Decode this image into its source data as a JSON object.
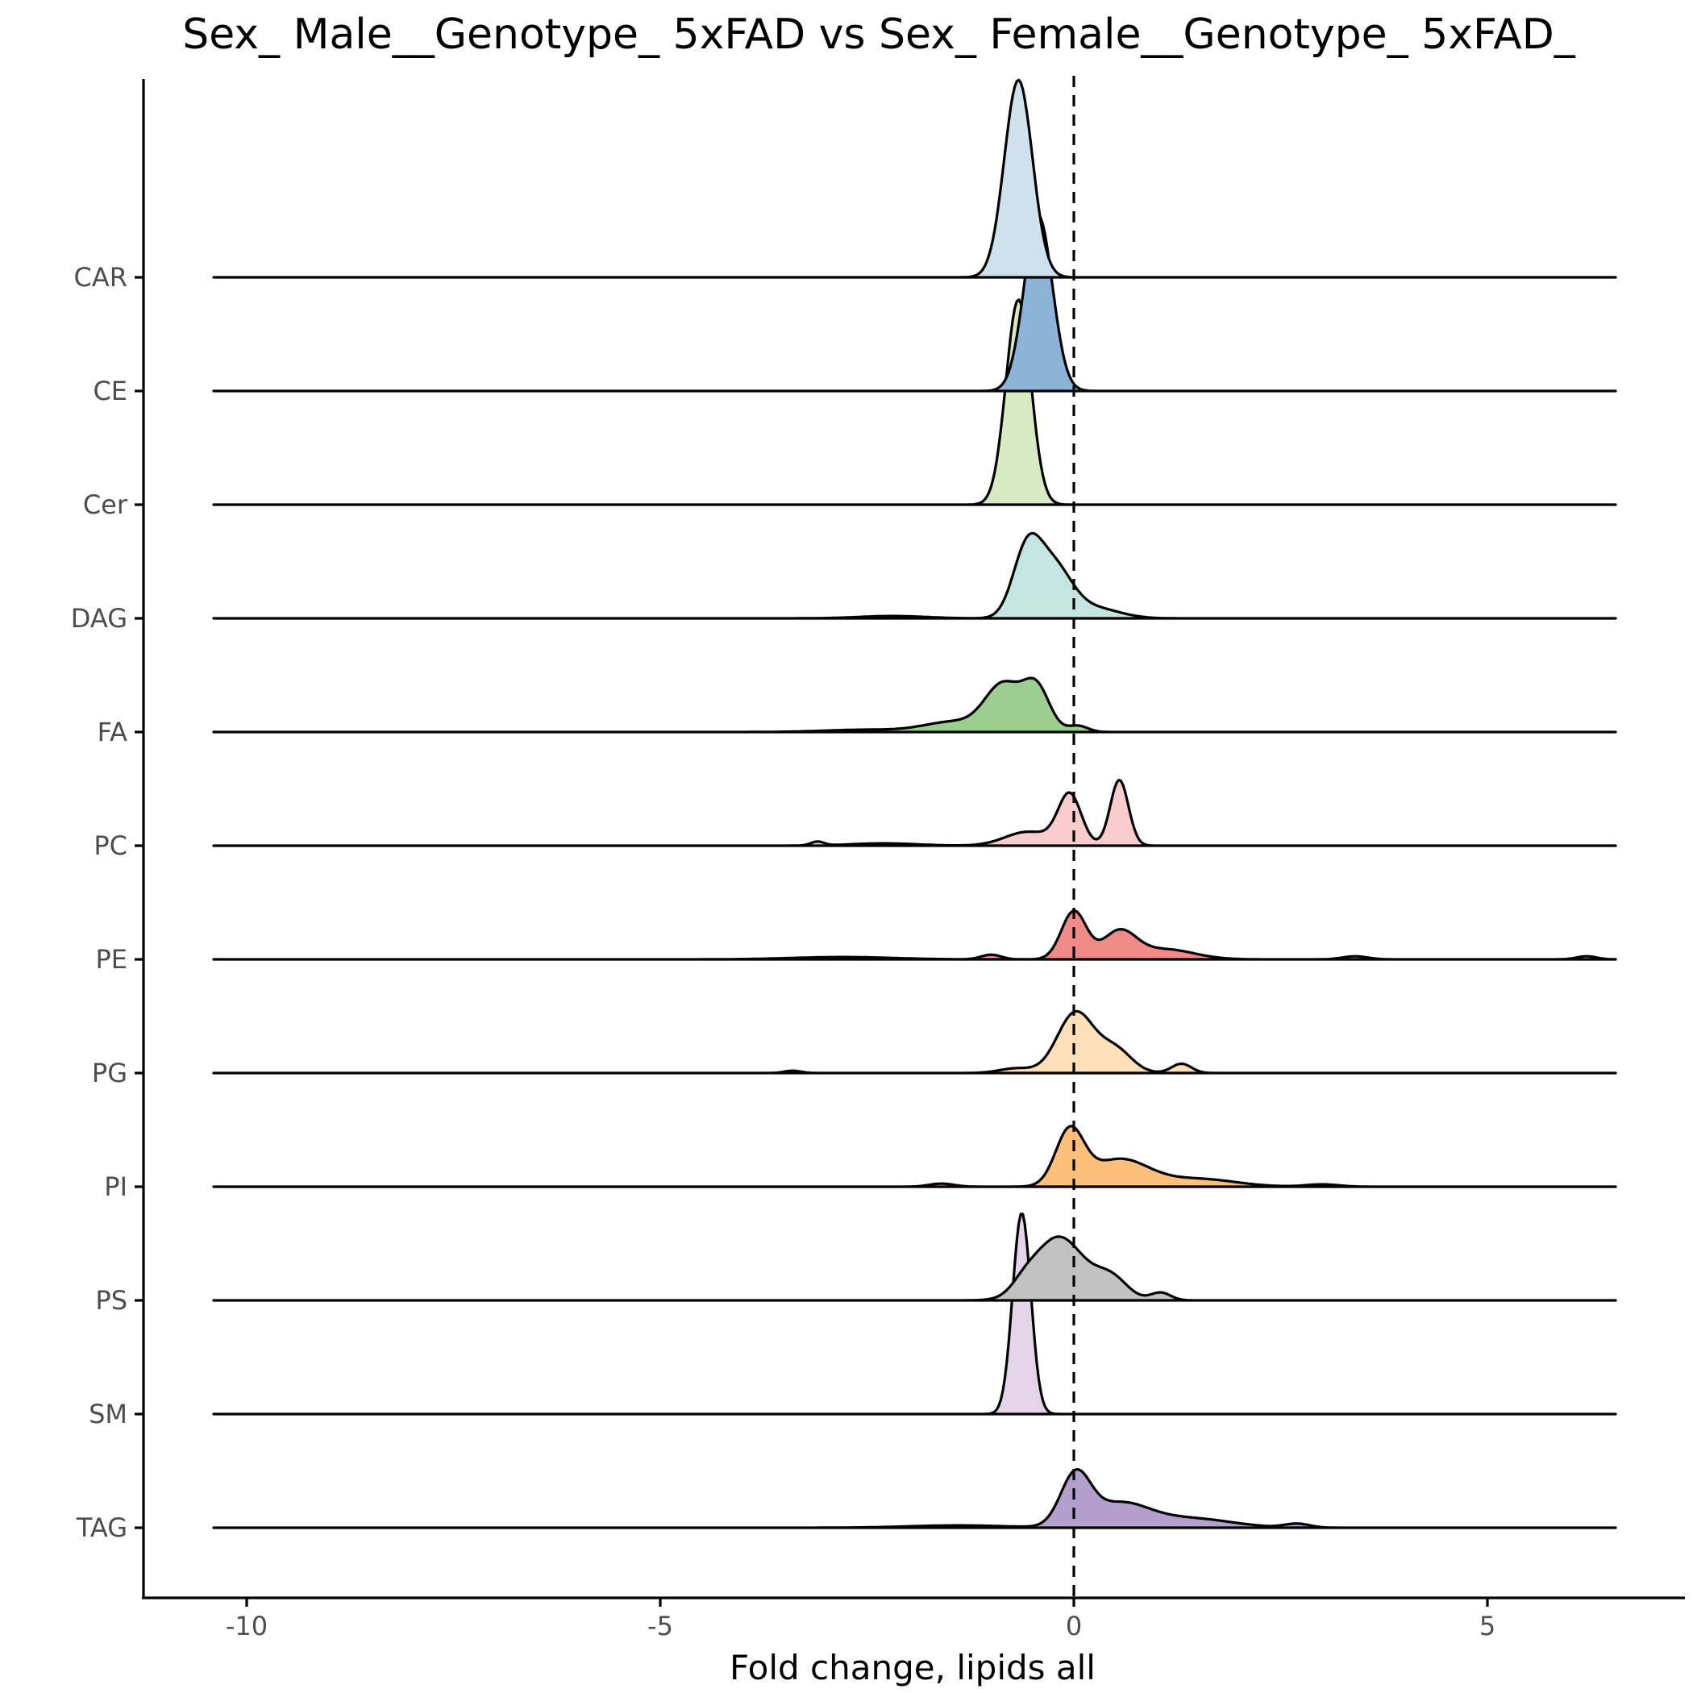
{
  "chart_data": {
    "type": "ridgeline",
    "title": "Sex_ Male__Genotype_ 5xFAD vs Sex_ Female__Genotype_ 5xFAD_",
    "xlabel": "Fold change, lipids all",
    "ylabel": "",
    "xlim": [
      -11.25,
      7.0
    ],
    "density_range": [
      -10.4,
      6.55
    ],
    "x_ticks": [
      -10,
      -5,
      0,
      5
    ],
    "x_tick_labels": [
      "-10",
      "-5",
      "0",
      "5"
    ],
    "reference_line_x": 0,
    "grid": false,
    "legend": "none",
    "categories": [
      "CAR",
      "CE",
      "Cer",
      "DAG",
      "FA",
      "PC",
      "PE",
      "PG",
      "PI",
      "PS",
      "SM",
      "TAG"
    ],
    "series": [
      {
        "name": "CAR",
        "color": "#d0e1ee",
        "peaks": [
          {
            "x": -0.67,
            "w": 0.17,
            "h": 2.55
          }
        ]
      },
      {
        "name": "CE",
        "color": "#8bb4d8",
        "peaks": [
          {
            "x": -0.43,
            "w": 0.17,
            "h": 2.27
          }
        ]
      },
      {
        "name": "Cer",
        "color": "#d7ebc3",
        "peaks": [
          {
            "x": -0.67,
            "w": 0.15,
            "h": 2.65
          }
        ]
      },
      {
        "name": "DAG",
        "color": "#c4e6e1",
        "peaks": [
          {
            "x": -0.57,
            "w": 0.17,
            "h": 0.82
          },
          {
            "x": -0.25,
            "w": 0.22,
            "h": 0.65
          },
          {
            "x": 0.25,
            "w": 0.3,
            "h": 0.13
          },
          {
            "x": -2.2,
            "w": 0.4,
            "h": 0.03
          }
        ]
      },
      {
        "name": "FA",
        "color": "#9ccf8f",
        "peaks": [
          {
            "x": -0.85,
            "w": 0.22,
            "h": 0.6
          },
          {
            "x": -0.45,
            "w": 0.16,
            "h": 0.55
          },
          {
            "x": -1.45,
            "w": 0.35,
            "h": 0.13
          },
          {
            "x": 0.05,
            "w": 0.12,
            "h": 0.08
          },
          {
            "x": -2.5,
            "w": 0.5,
            "h": 0.03
          }
        ]
      },
      {
        "name": "PC",
        "color": "#f9cdcd",
        "peaks": [
          {
            "x": -0.05,
            "w": 0.14,
            "h": 0.65
          },
          {
            "x": 0.55,
            "w": 0.11,
            "h": 0.85
          },
          {
            "x": -0.55,
            "w": 0.28,
            "h": 0.18
          },
          {
            "x": -3.1,
            "w": 0.08,
            "h": 0.05
          },
          {
            "x": -2.3,
            "w": 0.4,
            "h": 0.03
          }
        ]
      },
      {
        "name": "PE",
        "color": "#f08b88",
        "peaks": [
          {
            "x": 0.0,
            "w": 0.15,
            "h": 0.62
          },
          {
            "x": 0.55,
            "w": 0.2,
            "h": 0.35
          },
          {
            "x": 1.1,
            "w": 0.35,
            "h": 0.13
          },
          {
            "x": -1.0,
            "w": 0.12,
            "h": 0.06
          },
          {
            "x": -2.8,
            "w": 0.6,
            "h": 0.03
          },
          {
            "x": 6.2,
            "w": 0.12,
            "h": 0.04
          },
          {
            "x": 3.4,
            "w": 0.15,
            "h": 0.04
          }
        ]
      },
      {
        "name": "PG",
        "color": "#fde0b8",
        "peaks": [
          {
            "x": 0.02,
            "w": 0.22,
            "h": 0.78
          },
          {
            "x": 0.5,
            "w": 0.2,
            "h": 0.3
          },
          {
            "x": 1.3,
            "w": 0.12,
            "h": 0.12
          },
          {
            "x": -0.7,
            "w": 0.2,
            "h": 0.06
          },
          {
            "x": -3.4,
            "w": 0.1,
            "h": 0.03
          }
        ]
      },
      {
        "name": "PI",
        "color": "#fdbf79",
        "peaks": [
          {
            "x": -0.05,
            "w": 0.17,
            "h": 0.7
          },
          {
            "x": 0.55,
            "w": 0.35,
            "h": 0.35
          },
          {
            "x": 1.5,
            "w": 0.45,
            "h": 0.1
          },
          {
            "x": -1.6,
            "w": 0.15,
            "h": 0.04
          },
          {
            "x": 3.0,
            "w": 0.2,
            "h": 0.03
          }
        ]
      },
      {
        "name": "PS",
        "color": "#c2c2c2",
        "peaks": [
          {
            "x": -0.18,
            "w": 0.3,
            "h": 0.82
          },
          {
            "x": 0.45,
            "w": 0.2,
            "h": 0.28
          },
          {
            "x": 1.05,
            "w": 0.12,
            "h": 0.1
          },
          {
            "x": -0.6,
            "w": 0.15,
            "h": 0.12
          }
        ]
      },
      {
        "name": "SM",
        "color": "#e3d5e7",
        "peaks": [
          {
            "x": -0.63,
            "w": 0.11,
            "h": 2.6
          }
        ]
      },
      {
        "name": "TAG",
        "color": "#b39fcb",
        "peaks": [
          {
            "x": 0.02,
            "w": 0.18,
            "h": 0.65
          },
          {
            "x": 0.55,
            "w": 0.35,
            "h": 0.3
          },
          {
            "x": 1.4,
            "w": 0.5,
            "h": 0.12
          },
          {
            "x": 2.7,
            "w": 0.15,
            "h": 0.05
          },
          {
            "x": -1.4,
            "w": 0.6,
            "h": 0.03
          }
        ]
      }
    ]
  }
}
